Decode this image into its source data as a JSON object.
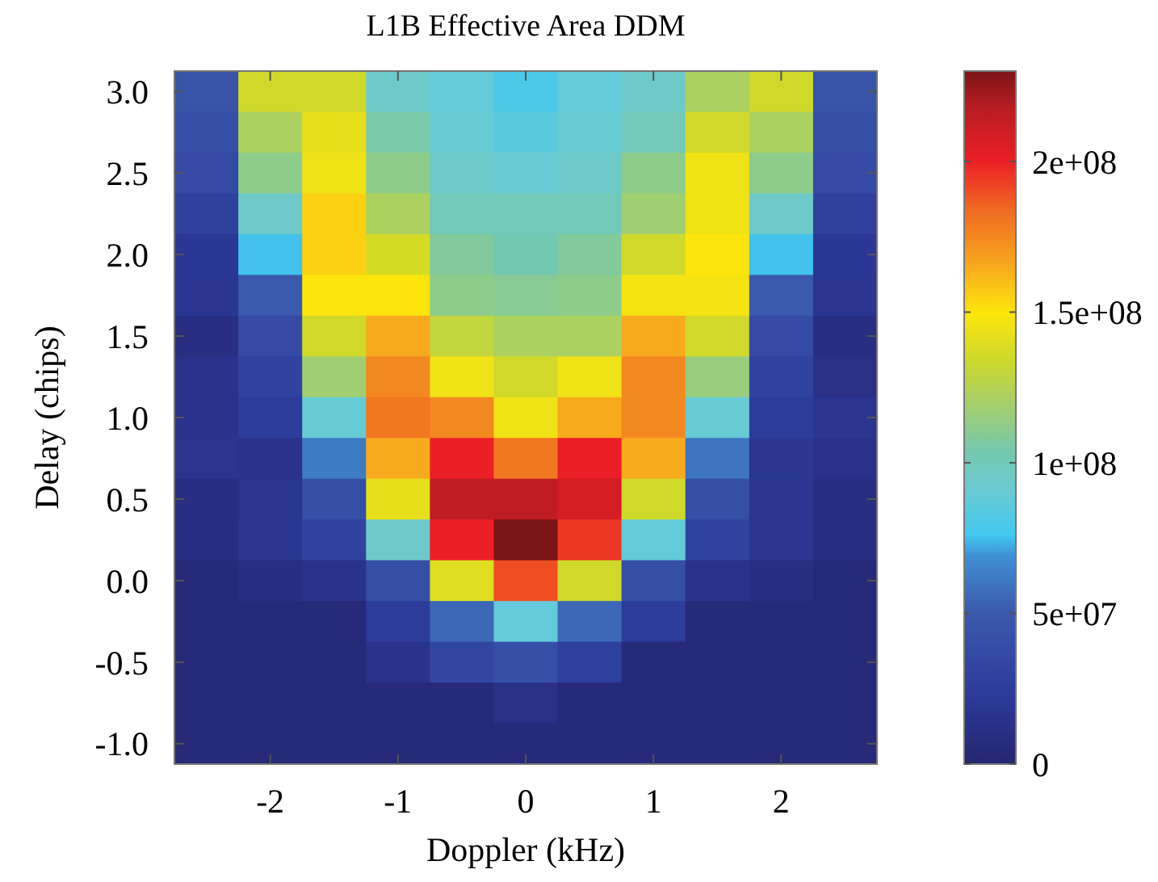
{
  "chart_data": {
    "type": "heatmap",
    "title": "L1B Effective Area DDM",
    "xlabel": "Doppler (kHz)",
    "ylabel": "Delay (chips)",
    "x": [
      -2.5,
      -2,
      -1.5,
      -1,
      -0.5,
      0,
      0.5,
      1,
      1.5,
      2,
      2.5
    ],
    "y": [
      3,
      2.75,
      2.5,
      2.25,
      2,
      1.75,
      1.5,
      1.25,
      1,
      0.75,
      0.5,
      0.25,
      0,
      -0.25,
      -0.5,
      -0.75,
      -1
    ],
    "cells": [
      [
        45000000.0,
        135000000.0,
        135000000.0,
        95000000.0,
        88000000.0,
        80000000.0,
        88000000.0,
        95000000.0,
        122000000.0,
        135000000.0,
        45000000.0
      ],
      [
        40000000.0,
        122000000.0,
        142000000.0,
        105000000.0,
        90000000.0,
        85000000.0,
        90000000.0,
        100000000.0,
        135000000.0,
        122000000.0,
        40000000.0
      ],
      [
        37000000.0,
        112000000.0,
        145000000.0,
        112000000.0,
        95000000.0,
        90000000.0,
        95000000.0,
        112000000.0,
        145000000.0,
        112000000.0,
        37000000.0
      ],
      [
        28000000.0,
        95000000.0,
        155000000.0,
        122000000.0,
        100000000.0,
        100000000.0,
        100000000.0,
        118000000.0,
        145000000.0,
        95000000.0,
        28000000.0
      ],
      [
        20000000.0,
        75000000.0,
        155000000.0,
        137000000.0,
        108000000.0,
        102000000.0,
        108000000.0,
        135000000.0,
        150000000.0,
        75000000.0,
        20000000.0
      ],
      [
        18000000.0,
        50000000.0,
        150000000.0,
        150000000.0,
        112000000.0,
        110000000.0,
        112000000.0,
        147000000.0,
        147000000.0,
        50000000.0,
        18000000.0
      ],
      [
        10000000.0,
        37000000.0,
        135000000.0,
        165000000.0,
        130000000.0,
        122000000.0,
        122000000.0,
        165000000.0,
        135000000.0,
        37000000.0,
        10000000.0
      ],
      [
        15000000.0,
        30000000.0,
        118000000.0,
        175000000.0,
        145000000.0,
        135000000.0,
        145000000.0,
        175000000.0,
        115000000.0,
        30000000.0,
        12000000.0
      ],
      [
        15000000.0,
        25000000.0,
        90000000.0,
        180000000.0,
        175000000.0,
        145000000.0,
        165000000.0,
        175000000.0,
        90000000.0,
        25000000.0,
        17000000.0
      ],
      [
        17000000.0,
        15000000.0,
        62000000.0,
        165000000.0,
        200000000.0,
        180000000.0,
        200000000.0,
        165000000.0,
        60000000.0,
        18000000.0,
        13000000.0
      ],
      [
        10000000.0,
        17000000.0,
        40000000.0,
        142000000.0,
        215000000.0,
        215000000.0,
        208000000.0,
        135000000.0,
        40000000.0,
        18000000.0,
        10000000.0
      ],
      [
        10000000.0,
        18000000.0,
        30000000.0,
        95000000.0,
        200000000.0,
        230000000.0,
        195000000.0,
        88000000.0,
        30000000.0,
        18000000.0,
        10000000.0
      ],
      [
        5000000.0,
        10000000.0,
        15000000.0,
        40000000.0,
        140000000.0,
        190000000.0,
        135000000.0,
        40000000.0,
        15000000.0,
        10000000.0,
        5000000.0
      ],
      [
        5000000.0,
        5000000.0,
        5000000.0,
        25000000.0,
        55000000.0,
        88000000.0,
        55000000.0,
        25000000.0,
        5000000.0,
        5000000.0,
        5000000.0
      ],
      [
        5000000.0,
        5000000.0,
        5000000.0,
        15000000.0,
        33000000.0,
        40000000.0,
        27000000.0,
        5000000.0,
        5000000.0,
        5000000.0,
        5000000.0
      ],
      [
        5000000.0,
        5000000.0,
        5000000.0,
        5000000.0,
        5000000.0,
        12000000.0,
        5000000.0,
        5000000.0,
        5000000.0,
        5000000.0,
        5000000.0
      ],
      [
        5000000.0,
        5000000.0,
        5000000.0,
        5000000.0,
        5000000.0,
        5000000.0,
        5000000.0,
        5000000.0,
        5000000.0,
        5000000.0,
        5000000.0
      ]
    ],
    "xlim": [
      -2.75,
      2.75
    ],
    "xticks": [
      -2,
      -1,
      0,
      1,
      2
    ],
    "ylim": [
      -1.125,
      3.125
    ],
    "yticks": [
      {
        "value": -1,
        "label": "-1.0"
      },
      {
        "value": -0.5,
        "label": "-0.5"
      },
      {
        "value": 0,
        "label": "0.0"
      },
      {
        "value": 0.5,
        "label": "0.5"
      },
      {
        "value": 1,
        "label": "1.0"
      },
      {
        "value": 1.5,
        "label": "1.5"
      },
      {
        "value": 2,
        "label": "2.0"
      },
      {
        "value": 2.5,
        "label": "2.5"
      },
      {
        "value": 3,
        "label": "3.0"
      }
    ],
    "clim": [
      0,
      230000000.0
    ],
    "cticks": [
      0,
      {
        "value": 50000000.0,
        "label": "5e+07"
      },
      {
        "value": 100000000.0,
        "label": "1e+08"
      },
      {
        "value": 150000000.0,
        "label": "1.5e+08"
      },
      {
        "value": 200000000.0,
        "label": "2e+08"
      }
    ]
  }
}
